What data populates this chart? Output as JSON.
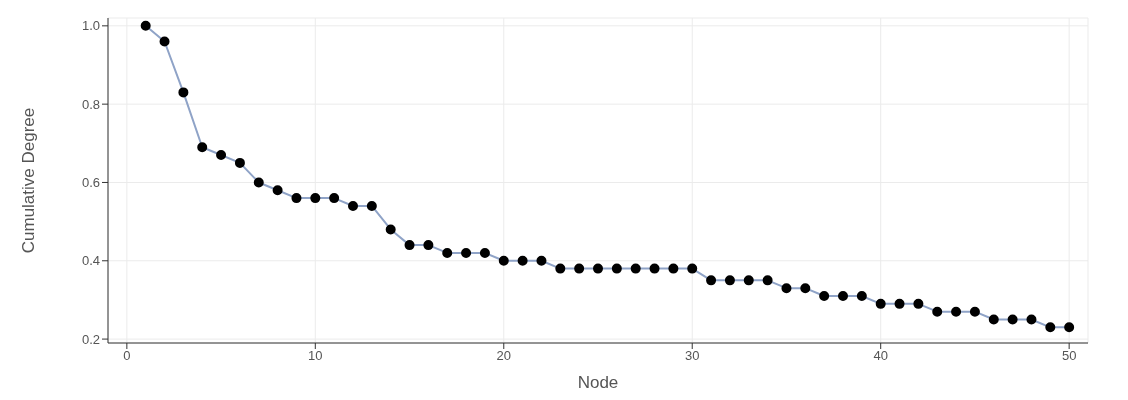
{
  "chart_data": {
    "type": "line",
    "xlabel": "Node",
    "ylabel": "Cumulative Degree",
    "x": [
      1,
      2,
      3,
      4,
      5,
      6,
      7,
      8,
      9,
      10,
      11,
      12,
      13,
      14,
      15,
      16,
      17,
      18,
      19,
      20,
      21,
      22,
      23,
      24,
      25,
      26,
      27,
      28,
      29,
      30,
      31,
      32,
      33,
      34,
      35,
      36,
      37,
      38,
      39,
      40,
      41,
      42,
      43,
      44,
      45,
      46,
      47,
      48,
      49,
      50
    ],
    "series": [
      {
        "color": "#8fa3c7",
        "values": [
          1,
          0.96,
          0.83,
          0.69,
          0.67,
          0.65,
          0.6,
          0.58,
          0.56,
          0.56,
          0.56,
          0.54,
          0.54,
          0.48,
          0.44,
          0.44,
          0.42,
          0.42,
          0.42,
          0.4,
          0.4,
          0.4,
          0.38,
          0.38,
          0.38,
          0.38,
          0.38,
          0.38,
          0.38,
          0.38,
          0.35,
          0.35,
          0.35,
          0.35,
          0.33,
          0.33,
          0.31,
          0.31,
          0.31,
          0.29,
          0.29,
          0.29,
          0.27,
          0.27,
          0.27,
          0.25,
          0.25,
          0.25,
          0.23,
          0.23
        ]
      }
    ],
    "xlim": [
      -1,
      51
    ],
    "xticks": [
      0,
      10,
      20,
      30,
      40,
      50
    ],
    "ylim": [
      0.19,
      1.02
    ],
    "yticks": [
      {
        "value": 0.2,
        "label": "0.2"
      },
      {
        "value": 0.4,
        "label": "0.4"
      },
      {
        "value": 0.6,
        "label": "0.6"
      },
      {
        "value": 0.8,
        "label": "0.8"
      },
      {
        "value": 1,
        "label": "1.0"
      }
    ],
    "grid": true,
    "marker": "circle",
    "line_style": "solid"
  }
}
